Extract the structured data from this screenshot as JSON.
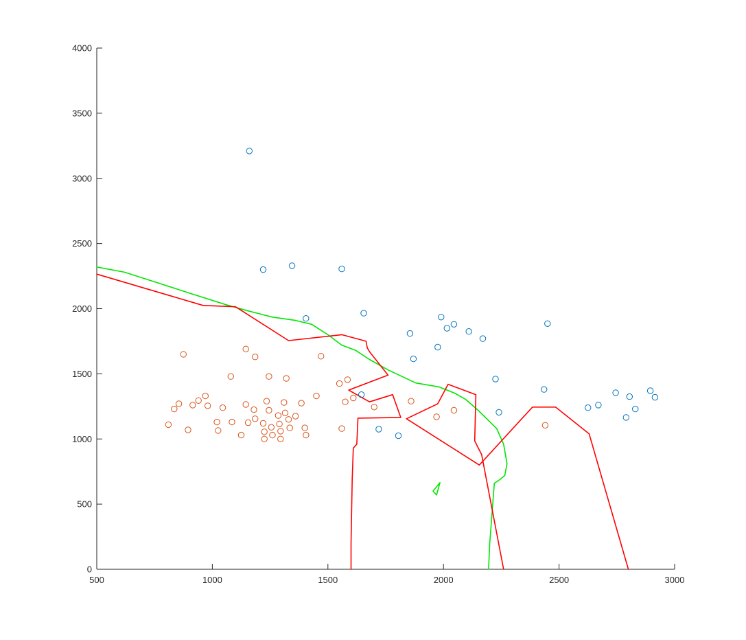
{
  "chart_data": {
    "type": "scatter",
    "title": "",
    "xlabel": "",
    "ylabel": "",
    "xlim": [
      500,
      3000
    ],
    "ylim": [
      0,
      4000
    ],
    "xticks": [
      500,
      1000,
      1500,
      2000,
      2500,
      3000
    ],
    "yticks": [
      0,
      500,
      1000,
      1500,
      2000,
      2500,
      3000,
      3500,
      4000
    ],
    "grid": false,
    "legend": "none",
    "colors": {
      "class_a": "#0072BD",
      "class_b": "#D95319",
      "boundary_red": "#FF0000",
      "boundary_green": "#00E600",
      "axis": "#262626"
    },
    "series": [
      {
        "kind": "points",
        "color_key": "class_a",
        "points": [
          [
            1160,
            3210
          ],
          [
            1220,
            2300
          ],
          [
            1345,
            2330
          ],
          [
            1560,
            2305
          ],
          [
            1405,
            1925
          ],
          [
            1655,
            1965
          ],
          [
            1855,
            1810
          ],
          [
            1870,
            1615
          ],
          [
            1990,
            1935
          ],
          [
            2015,
            1850
          ],
          [
            2045,
            1880
          ],
          [
            2110,
            1825
          ],
          [
            2170,
            1770
          ],
          [
            1975,
            1705
          ],
          [
            2450,
            1885
          ],
          [
            2225,
            1460
          ],
          [
            2240,
            1205
          ],
          [
            2435,
            1380
          ],
          [
            1645,
            1340
          ],
          [
            1720,
            1075
          ],
          [
            1805,
            1025
          ],
          [
            2625,
            1240
          ],
          [
            2670,
            1260
          ],
          [
            2745,
            1355
          ],
          [
            2790,
            1165
          ],
          [
            2805,
            1325
          ],
          [
            2830,
            1230
          ],
          [
            2895,
            1370
          ],
          [
            2915,
            1320
          ]
        ]
      },
      {
        "kind": "points",
        "color_key": "class_b",
        "points": [
          [
            875,
            1650
          ],
          [
            1145,
            1690
          ],
          [
            1185,
            1630
          ],
          [
            1470,
            1635
          ],
          [
            1080,
            1480
          ],
          [
            1245,
            1480
          ],
          [
            1320,
            1465
          ],
          [
            1550,
            1425
          ],
          [
            1585,
            1455
          ],
          [
            810,
            1110
          ],
          [
            835,
            1230
          ],
          [
            855,
            1270
          ],
          [
            895,
            1070
          ],
          [
            915,
            1260
          ],
          [
            940,
            1295
          ],
          [
            970,
            1330
          ],
          [
            980,
            1255
          ],
          [
            1020,
            1130
          ],
          [
            1025,
            1065
          ],
          [
            1045,
            1240
          ],
          [
            1085,
            1130
          ],
          [
            1125,
            1030
          ],
          [
            1145,
            1265
          ],
          [
            1155,
            1125
          ],
          [
            1180,
            1225
          ],
          [
            1185,
            1155
          ],
          [
            1220,
            1120
          ],
          [
            1225,
            1055
          ],
          [
            1225,
            1000
          ],
          [
            1235,
            1290
          ],
          [
            1245,
            1220
          ],
          [
            1255,
            1090
          ],
          [
            1260,
            1030
          ],
          [
            1285,
            1180
          ],
          [
            1290,
            1115
          ],
          [
            1295,
            1060
          ],
          [
            1295,
            1000
          ],
          [
            1310,
            1280
          ],
          [
            1315,
            1200
          ],
          [
            1330,
            1150
          ],
          [
            1335,
            1085
          ],
          [
            1360,
            1175
          ],
          [
            1385,
            1275
          ],
          [
            1400,
            1085
          ],
          [
            1405,
            1030
          ],
          [
            1450,
            1330
          ],
          [
            1560,
            1080
          ],
          [
            1575,
            1285
          ],
          [
            1610,
            1315
          ],
          [
            1700,
            1245
          ],
          [
            1860,
            1290
          ],
          [
            1970,
            1170
          ],
          [
            2045,
            1220
          ],
          [
            2440,
            1105
          ]
        ]
      },
      {
        "kind": "line",
        "color_key": "boundary_green",
        "points": [
          [
            500,
            2320
          ],
          [
            620,
            2280
          ],
          [
            760,
            2200
          ],
          [
            900,
            2120
          ],
          [
            1060,
            2030
          ],
          [
            1150,
            1985
          ],
          [
            1260,
            1935
          ],
          [
            1360,
            1910
          ],
          [
            1430,
            1880
          ],
          [
            1500,
            1800
          ],
          [
            1560,
            1720
          ],
          [
            1620,
            1680
          ],
          [
            1680,
            1610
          ],
          [
            1760,
            1530
          ],
          [
            1820,
            1480
          ],
          [
            1880,
            1430
          ],
          [
            1980,
            1400
          ],
          [
            2050,
            1350
          ],
          [
            2095,
            1305
          ],
          [
            2150,
            1220
          ],
          [
            2230,
            1080
          ],
          [
            2260,
            960
          ],
          [
            2275,
            810
          ],
          [
            2265,
            720
          ],
          [
            2245,
            690
          ],
          [
            2220,
            660
          ],
          [
            2200,
            200
          ],
          [
            2195,
            0
          ]
        ]
      },
      {
        "kind": "line",
        "color_key": "boundary_green",
        "points": [
          [
            1955,
            600
          ],
          [
            1970,
            570
          ],
          [
            1985,
            665
          ],
          [
            1955,
            600
          ]
        ]
      },
      {
        "kind": "line",
        "color_key": "boundary_red",
        "points": [
          [
            500,
            2265
          ],
          [
            960,
            2025
          ],
          [
            1100,
            2015
          ],
          [
            1330,
            1755
          ],
          [
            1560,
            1800
          ],
          [
            1665,
            1750
          ],
          [
            1670,
            1700
          ],
          [
            1680,
            1670
          ],
          [
            1760,
            1490
          ],
          [
            1590,
            1375
          ],
          [
            1680,
            1285
          ],
          [
            1780,
            1340
          ],
          [
            1815,
            1165
          ],
          [
            1630,
            1160
          ],
          [
            1625,
            960
          ],
          [
            1610,
            930
          ],
          [
            1605,
            690
          ],
          [
            1600,
            200
          ],
          [
            1600,
            0
          ]
        ]
      },
      {
        "kind": "line",
        "color_key": "boundary_red",
        "points": [
          [
            1840,
            1155
          ],
          [
            1975,
            1270
          ],
          [
            2020,
            1420
          ],
          [
            2140,
            1340
          ],
          [
            2135,
            985
          ],
          [
            2165,
            880
          ],
          [
            2260,
            0
          ]
        ]
      },
      {
        "kind": "line",
        "color_key": "boundary_red",
        "points": [
          [
            1840,
            1155
          ],
          [
            2155,
            800
          ],
          [
            2385,
            1245
          ],
          [
            2485,
            1245
          ],
          [
            2630,
            1040
          ],
          [
            2800,
            0
          ]
        ]
      }
    ]
  }
}
